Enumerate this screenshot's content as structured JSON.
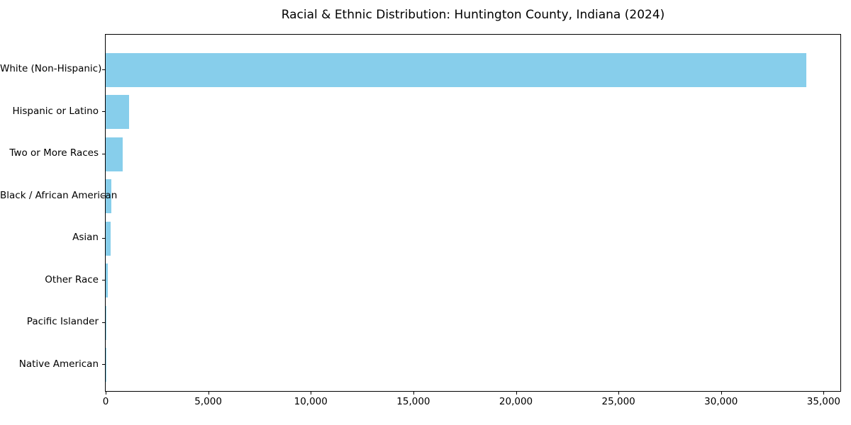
{
  "title": "Racial & Ethnic Distribution: Huntington County, Indiana (2024)",
  "colors": {
    "bar": "#87CEEB",
    "text": "#000000",
    "axis": "#000000",
    "background": "#ffffff"
  },
  "chart_data": {
    "type": "bar",
    "orientation": "horizontal",
    "title": "Racial & Ethnic Distribution: Huntington County, Indiana (2024)",
    "xlabel": "",
    "ylabel": "",
    "categories": [
      "White (Non-Hispanic)",
      "Hispanic or Latino",
      "Two or More Races",
      "Black / African American",
      "Asian",
      "Other Race",
      "Pacific Islander",
      "Native American"
    ],
    "values": [
      34140,
      1130,
      830,
      280,
      225,
      105,
      25,
      15
    ],
    "xlim": [
      0,
      35850
    ],
    "x_ticks": [
      0,
      5000,
      10000,
      15000,
      20000,
      25000,
      30000,
      35000
    ],
    "x_tick_labels": [
      "0",
      "5,000",
      "10,000",
      "15,000",
      "20,000",
      "25,000",
      "30,000",
      "35,000"
    ],
    "bar_color": "#87CEEB",
    "grid": false,
    "legend_position": "none"
  }
}
